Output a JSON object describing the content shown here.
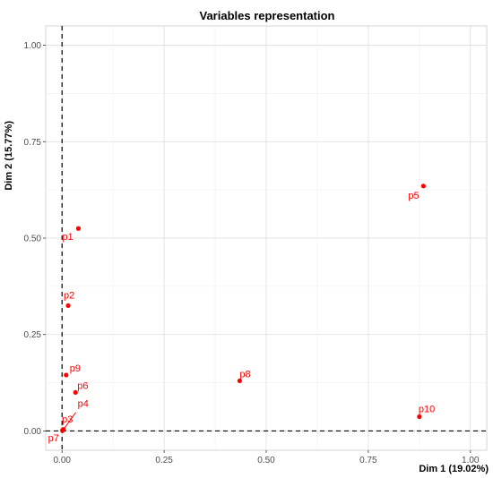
{
  "chart_data": {
    "type": "scatter",
    "title": "Variables representation",
    "xlabel": "Dim 1 (19.02%)",
    "ylabel": "Dim 2 (15.77%)",
    "xlim": [
      -0.04,
      1.04
    ],
    "ylim": [
      -0.05,
      1.05
    ],
    "x_ticks": [
      "0.00",
      "0.25",
      "0.50",
      "0.75",
      "1.00"
    ],
    "y_ticks": [
      "0.00",
      "0.25",
      "0.50",
      "0.75",
      "1.00"
    ],
    "grid": true,
    "reference_lines": {
      "x": 0,
      "y": 0,
      "style": "dashed"
    },
    "point_color": "#ff0000",
    "points": [
      {
        "label": "p1",
        "x": 0.04,
        "y": 0.525
      },
      {
        "label": "p2",
        "x": 0.015,
        "y": 0.325
      },
      {
        "label": "p3",
        "x": 0.002,
        "y": 0.003
      },
      {
        "label": "p4",
        "x": 0.003,
        "y": 0.004
      },
      {
        "label": "p5",
        "x": 0.885,
        "y": 0.635
      },
      {
        "label": "p6",
        "x": 0.033,
        "y": 0.1
      },
      {
        "label": "p7",
        "x": 0.001,
        "y": 0.001
      },
      {
        "label": "p8",
        "x": 0.435,
        "y": 0.13
      },
      {
        "label": "p9",
        "x": 0.01,
        "y": 0.145
      },
      {
        "label": "p10",
        "x": 0.875,
        "y": 0.037
      }
    ]
  }
}
